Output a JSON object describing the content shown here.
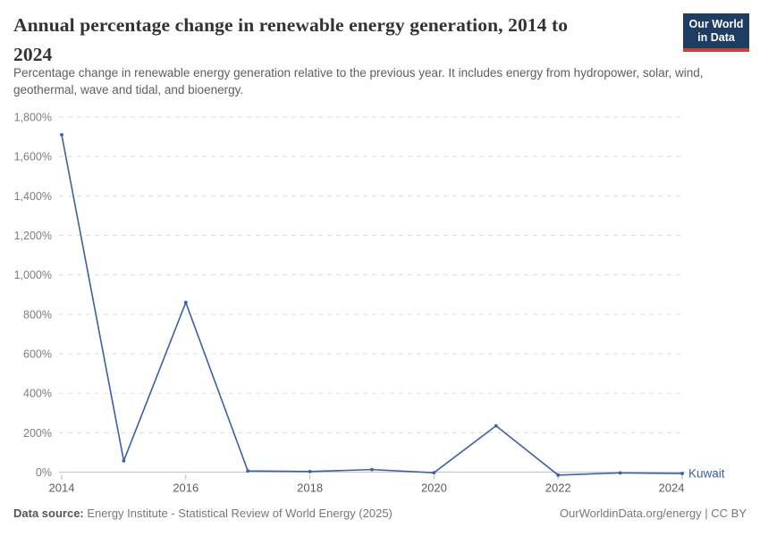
{
  "header": {
    "title": "Annual percentage change in renewable energy generation, 2014 to 2024",
    "title_lines": [
      "Annual percentage change in renewable energy generation, 2014 to",
      "2024"
    ],
    "subtitle": "Percentage change in renewable energy generation relative to the previous year. It includes energy from hydropower, solar, wind, geothermal, wave and tidal, and bioenergy.",
    "logo": {
      "line1": "Our World",
      "line2": "in Data",
      "bg_color": "#1d3d63",
      "accent_color": "#d13d33"
    }
  },
  "chart_data": {
    "type": "line",
    "title": "Annual percentage change in renewable energy generation, 2014 to 2024",
    "xlabel": "",
    "ylabel": "",
    "x": [
      2014,
      2015,
      2016,
      2017,
      2018,
      2019,
      2020,
      2021,
      2022,
      2023,
      2024
    ],
    "series": [
      {
        "name": "Kuwait",
        "color": "#3d5fa8",
        "values": [
          1710,
          57,
          860,
          6,
          3,
          13,
          -3,
          235,
          -15,
          -4,
          -7
        ]
      }
    ],
    "x_ticks": {
      "values": [
        2014,
        2016,
        2018,
        2020,
        2022,
        2024
      ],
      "labels": [
        "2014",
        "2016",
        "2018",
        "2020",
        "2022",
        "2024"
      ]
    },
    "y_ticks": {
      "values": [
        0,
        200,
        400,
        600,
        800,
        1000,
        1200,
        1400,
        1600,
        1800
      ],
      "labels": [
        "0%",
        "200%",
        "400%",
        "600%",
        "800%",
        "1,000%",
        "1,200%",
        "1,400%",
        "1,600%",
        "1,800%"
      ]
    },
    "ylim": [
      -20,
      1830
    ],
    "grid": "horizontal-dashed",
    "legend": "end-of-line-label",
    "colors": {
      "gridline": "#dcdcdc",
      "zero_line": "#c8c8c8",
      "tick": "#b3b3b3"
    }
  },
  "footer": {
    "source_label": "Data source:",
    "source_text": " Energy Institute - Statistical Review of World Energy (2025)",
    "right_text": "OurWorldinData.org/energy | CC BY"
  }
}
